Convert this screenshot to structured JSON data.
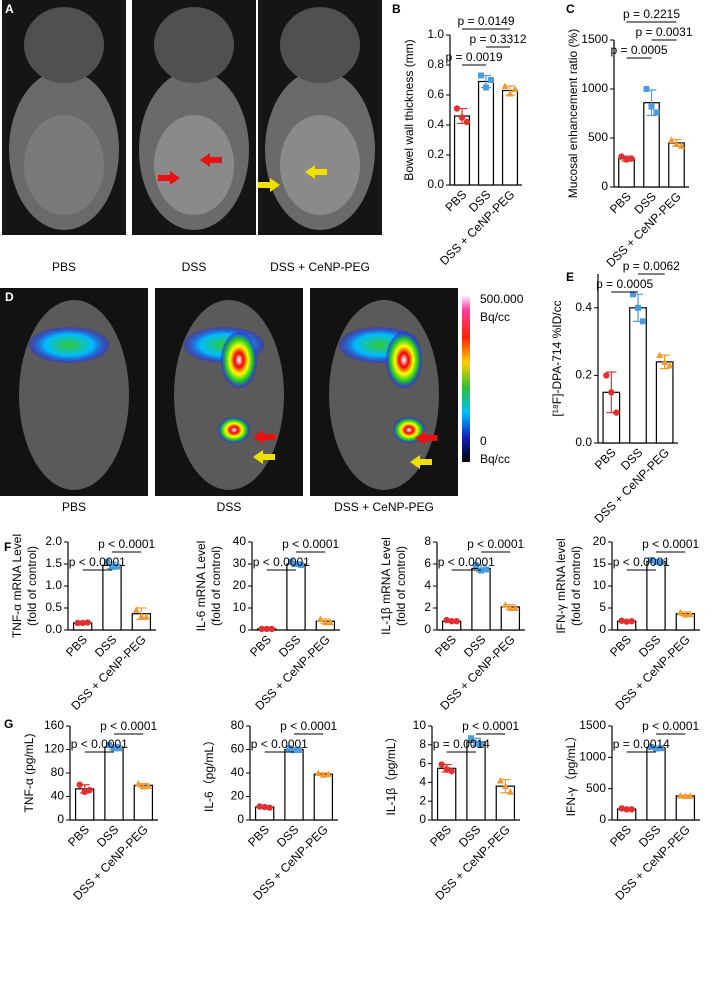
{
  "images": [
    {
      "panel": "A",
      "labels": [
        "PBS",
        "DSS",
        "DSS + CeNP-PEG"
      ]
    },
    {
      "panel": "D",
      "labels": [
        "PBS",
        "DSS",
        "DSS + CeNP-PEG"
      ],
      "colorbar": {
        "max": "500.000",
        "min": "0",
        "unit": "Bq/cc"
      }
    }
  ],
  "chart_data": [
    {
      "type": "bar",
      "panel": "B",
      "ylabel": [
        "Bowel wall thickness (mm)"
      ],
      "categories": [
        "PBS",
        "DSS",
        "DSS + CeNP-PEG"
      ],
      "values": [
        0.46,
        0.69,
        0.63
      ],
      "errors": [
        0.05,
        0.04,
        0.03
      ],
      "points": [
        [
          0.51,
          0.45,
          0.42
        ],
        [
          0.73,
          0.65,
          0.7
        ],
        [
          0.66,
          0.61,
          0.64
        ]
      ],
      "point_colors": [
        "#e03030",
        "#4a9be0",
        "#f09a30"
      ],
      "ylim": [
        0,
        1
      ],
      "yticks": [
        {
          "value": 0,
          "label": "0.0"
        },
        0.2,
        0.4,
        0.6,
        0.8,
        {
          "value": 1,
          "label": "1.0"
        }
      ],
      "annotations": [
        {
          "label": "p = 0.0149",
          "from": 0,
          "to": 2
        },
        {
          "label": "p = 0.3312",
          "from": 1,
          "to": 2
        },
        {
          "label": "p = 0.0019",
          "from": 0,
          "to": 1
        }
      ]
    },
    {
      "type": "bar",
      "panel": "C",
      "ylabel": [
        "Mucosal enhancement ratio (%)"
      ],
      "categories": [
        "PBS",
        "DSS",
        "DSS + CeNP-PEG"
      ],
      "values": [
        290,
        860,
        450
      ],
      "errors": [
        25,
        130,
        35
      ],
      "points": [
        [
          310,
          280,
          290
        ],
        [
          1000,
          820,
          760
        ],
        [
          480,
          440,
          420
        ]
      ],
      "point_colors": [
        "#e03030",
        "#4a9be0",
        "#f09a30"
      ],
      "ylim": [
        0,
        1500
      ],
      "yticks": [
        0,
        500,
        1000,
        1500
      ],
      "annotations": [
        {
          "label": "p = 0.2215",
          "from": 0,
          "to": 2
        },
        {
          "label": "p = 0.0031",
          "from": 1,
          "to": 2
        },
        {
          "label": "p = 0.0005",
          "from": 0,
          "to": 1
        }
      ]
    },
    {
      "type": "bar",
      "panel": "E",
      "ylabel": [
        "[¹⁸F]-DPA-714 %ID/cc"
      ],
      "categories": [
        "PBS",
        "DSS",
        "DSS + CeNP-PEG"
      ],
      "values": [
        0.15,
        0.4,
        0.24
      ],
      "errors": [
        0.06,
        0.04,
        0.02
      ],
      "points": [
        [
          0.2,
          0.15,
          0.09
        ],
        [
          0.44,
          0.4,
          0.36
        ],
        [
          0.26,
          0.24,
          0.23
        ]
      ],
      "point_colors": [
        "#e03030",
        "#4a9be0",
        "#f09a30"
      ],
      "ylim": [
        0,
        0.5
      ],
      "yticks": [
        {
          "value": 0,
          "label": "0.0"
        },
        0.2,
        0.4
      ],
      "annotations": [
        {
          "label": "p = 0.0062",
          "from": 1,
          "to": 2
        },
        {
          "label": "p = 0.0005",
          "from": 0,
          "to": 1
        }
      ]
    },
    {
      "type": "bar",
      "panel": "F",
      "ylabel": [
        "TNF-α mRNA Level",
        "(fold of control)"
      ],
      "categories": [
        "PBS",
        "DSS",
        "DSS + CeNP-PEG"
      ],
      "values": [
        0.16,
        1.47,
        0.37
      ],
      "errors": [
        0.01,
        0.07,
        0.13
      ],
      "points": [
        [
          0.16,
          0.16,
          0.17
        ],
        [
          1.55,
          1.43,
          1.44
        ],
        [
          0.46,
          0.31,
          0.3
        ]
      ],
      "point_colors": [
        "#e03030",
        "#4a9be0",
        "#f09a30"
      ],
      "ylim": [
        0,
        2
      ],
      "yticks": [
        {
          "value": 0,
          "label": "0.0"
        },
        0.5,
        {
          "value": 1,
          "label": "1.0"
        },
        1.5,
        {
          "value": 2,
          "label": "2.0"
        }
      ],
      "annotations": [
        {
          "label": "p < 0.0001",
          "from": 1,
          "to": 2
        },
        {
          "label": "p < 0.0001",
          "from": 0,
          "to": 1
        }
      ]
    },
    {
      "type": "bar",
      "ylabel": [
        "IL-6 mRNA Level",
        "(fold of control)"
      ],
      "categories": [
        "PBS",
        "DSS",
        "DSS + CeNP-PEG"
      ],
      "values": [
        0.5,
        30,
        4
      ],
      "errors": [
        0.1,
        1,
        1
      ],
      "points": [
        [
          0.5,
          0.5,
          0.5
        ],
        [
          31,
          30,
          29.5
        ],
        [
          5,
          3.5,
          3.5
        ]
      ],
      "point_colors": [
        "#e03030",
        "#4a9be0",
        "#f09a30"
      ],
      "ylim": [
        0,
        40
      ],
      "yticks": [
        0,
        10,
        20,
        30,
        40
      ],
      "annotations": [
        {
          "label": "p < 0.0001",
          "from": 1,
          "to": 2
        },
        {
          "label": "p < 0.0001",
          "from": 0,
          "to": 1
        }
      ]
    },
    {
      "type": "bar",
      "ylabel": [
        "IL-1β mRNA Level",
        "(fold of control)"
      ],
      "categories": [
        "PBS",
        "DSS",
        "DSS + CeNP-PEG"
      ],
      "values": [
        0.8,
        5.6,
        2.1
      ],
      "errors": [
        0.1,
        0.3,
        0.2
      ],
      "points": [
        [
          0.9,
          0.8,
          0.8
        ],
        [
          5.9,
          5.4,
          5.5
        ],
        [
          2.3,
          2.0,
          2.0
        ]
      ],
      "point_colors": [
        "#e03030",
        "#4a9be0",
        "#f09a30"
      ],
      "ylim": [
        0,
        8
      ],
      "yticks": [
        0,
        2,
        4,
        6,
        8
      ],
      "annotations": [
        {
          "label": "p < 0.0001",
          "from": 1,
          "to": 2
        },
        {
          "label": "p < 0.0001",
          "from": 0,
          "to": 1
        }
      ]
    },
    {
      "type": "bar",
      "ylabel": [
        "IFN-γ mRNA level",
        "(fold of control)"
      ],
      "categories": [
        "PBS",
        "DSS",
        "DSS + CeNP-PEG"
      ],
      "values": [
        2.0,
        15.6,
        3.7
      ],
      "errors": [
        0.2,
        0.3,
        0.4
      ],
      "points": [
        [
          2.1,
          1.9,
          2.0
        ],
        [
          15.9,
          15.5,
          15.4
        ],
        [
          4.0,
          3.5,
          3.6
        ]
      ],
      "point_colors": [
        "#e03030",
        "#4a9be0",
        "#f09a30"
      ],
      "ylim": [
        0,
        20
      ],
      "yticks": [
        0,
        5,
        10,
        15,
        20
      ],
      "annotations": [
        {
          "label": "p < 0.0001",
          "from": 1,
          "to": 2
        },
        {
          "label": "p < 0.0001",
          "from": 0,
          "to": 1
        }
      ]
    },
    {
      "type": "bar",
      "panel": "G",
      "ylabel": [
        "TNF-α (pg/mL)"
      ],
      "categories": [
        "PBS",
        "DSS",
        "DSS + CeNP-PEG"
      ],
      "values": [
        53,
        124,
        59
      ],
      "errors": [
        7,
        4,
        3
      ],
      "points": [
        [
          60,
          48,
          51
        ],
        [
          128,
          122,
          122
        ],
        [
          62,
          57,
          58
        ]
      ],
      "point_colors": [
        "#e03030",
        "#4a9be0",
        "#f09a30"
      ],
      "ylim": [
        0,
        160
      ],
      "yticks": [
        0,
        40,
        80,
        120,
        160
      ],
      "annotations": [
        {
          "label": "p < 0.0001",
          "from": 1,
          "to": 2
        },
        {
          "label": "p < 0.0001",
          "from": 0,
          "to": 1
        }
      ]
    },
    {
      "type": "bar",
      "ylabel": [
        "IL-6（pg/mL）"
      ],
      "categories": [
        "PBS",
        "DSS",
        "DSS + CeNP-PEG"
      ],
      "values": [
        11,
        60,
        39
      ],
      "errors": [
        1,
        1,
        1
      ],
      "points": [
        [
          11.5,
          11,
          10.5
        ],
        [
          61,
          59.5,
          59.5
        ],
        [
          40,
          38.5,
          39
        ]
      ],
      "point_colors": [
        "#e03030",
        "#4a9be0",
        "#f09a30"
      ],
      "ylim": [
        0,
        80
      ],
      "yticks": [
        0,
        20,
        40,
        60,
        80
      ],
      "annotations": [
        {
          "label": "p < 0.0001",
          "from": 1,
          "to": 2
        },
        {
          "label": "p < 0.0001",
          "from": 0,
          "to": 1
        }
      ]
    },
    {
      "type": "bar",
      "ylabel": [
        "IL-1β（pg/mL）"
      ],
      "categories": [
        "PBS",
        "DSS",
        "DSS + CeNP-PEG"
      ],
      "values": [
        5.5,
        8.3,
        3.6
      ],
      "errors": [
        0.4,
        0.4,
        0.7
      ],
      "points": [
        [
          5.9,
          5.4,
          5.2
        ],
        [
          8.7,
          8.1,
          8.0
        ],
        [
          4.2,
          3.6,
          3.0
        ]
      ],
      "point_colors": [
        "#e03030",
        "#4a9be0",
        "#f09a30"
      ],
      "ylim": [
        0,
        10
      ],
      "yticks": [
        0,
        2,
        4,
        6,
        8,
        10
      ],
      "annotations": [
        {
          "label": "p < 0.0001",
          "from": 1,
          "to": 2
        },
        {
          "label": "p = 0.0014",
          "from": 0,
          "to": 1
        }
      ]
    },
    {
      "type": "bar",
      "ylabel": [
        "IFN-γ（pg/mL）"
      ],
      "categories": [
        "PBS",
        "DSS",
        "DSS + CeNP-PEG"
      ],
      "values": [
        175,
        1150,
        385
      ],
      "errors": [
        10,
        20,
        10
      ],
      "points": [
        [
          185,
          170,
          170
        ],
        [
          1165,
          1140,
          1145
        ],
        [
          390,
          380,
          385
        ]
      ],
      "point_colors": [
        "#e03030",
        "#4a9be0",
        "#f09a30"
      ],
      "ylim": [
        0,
        1500
      ],
      "yticks": [
        0,
        500,
        1000,
        1500
      ],
      "annotations": [
        {
          "label": "p < 0.0001",
          "from": 1,
          "to": 2
        },
        {
          "label": "p = 0.0014",
          "from": 0,
          "to": 1
        }
      ]
    }
  ]
}
